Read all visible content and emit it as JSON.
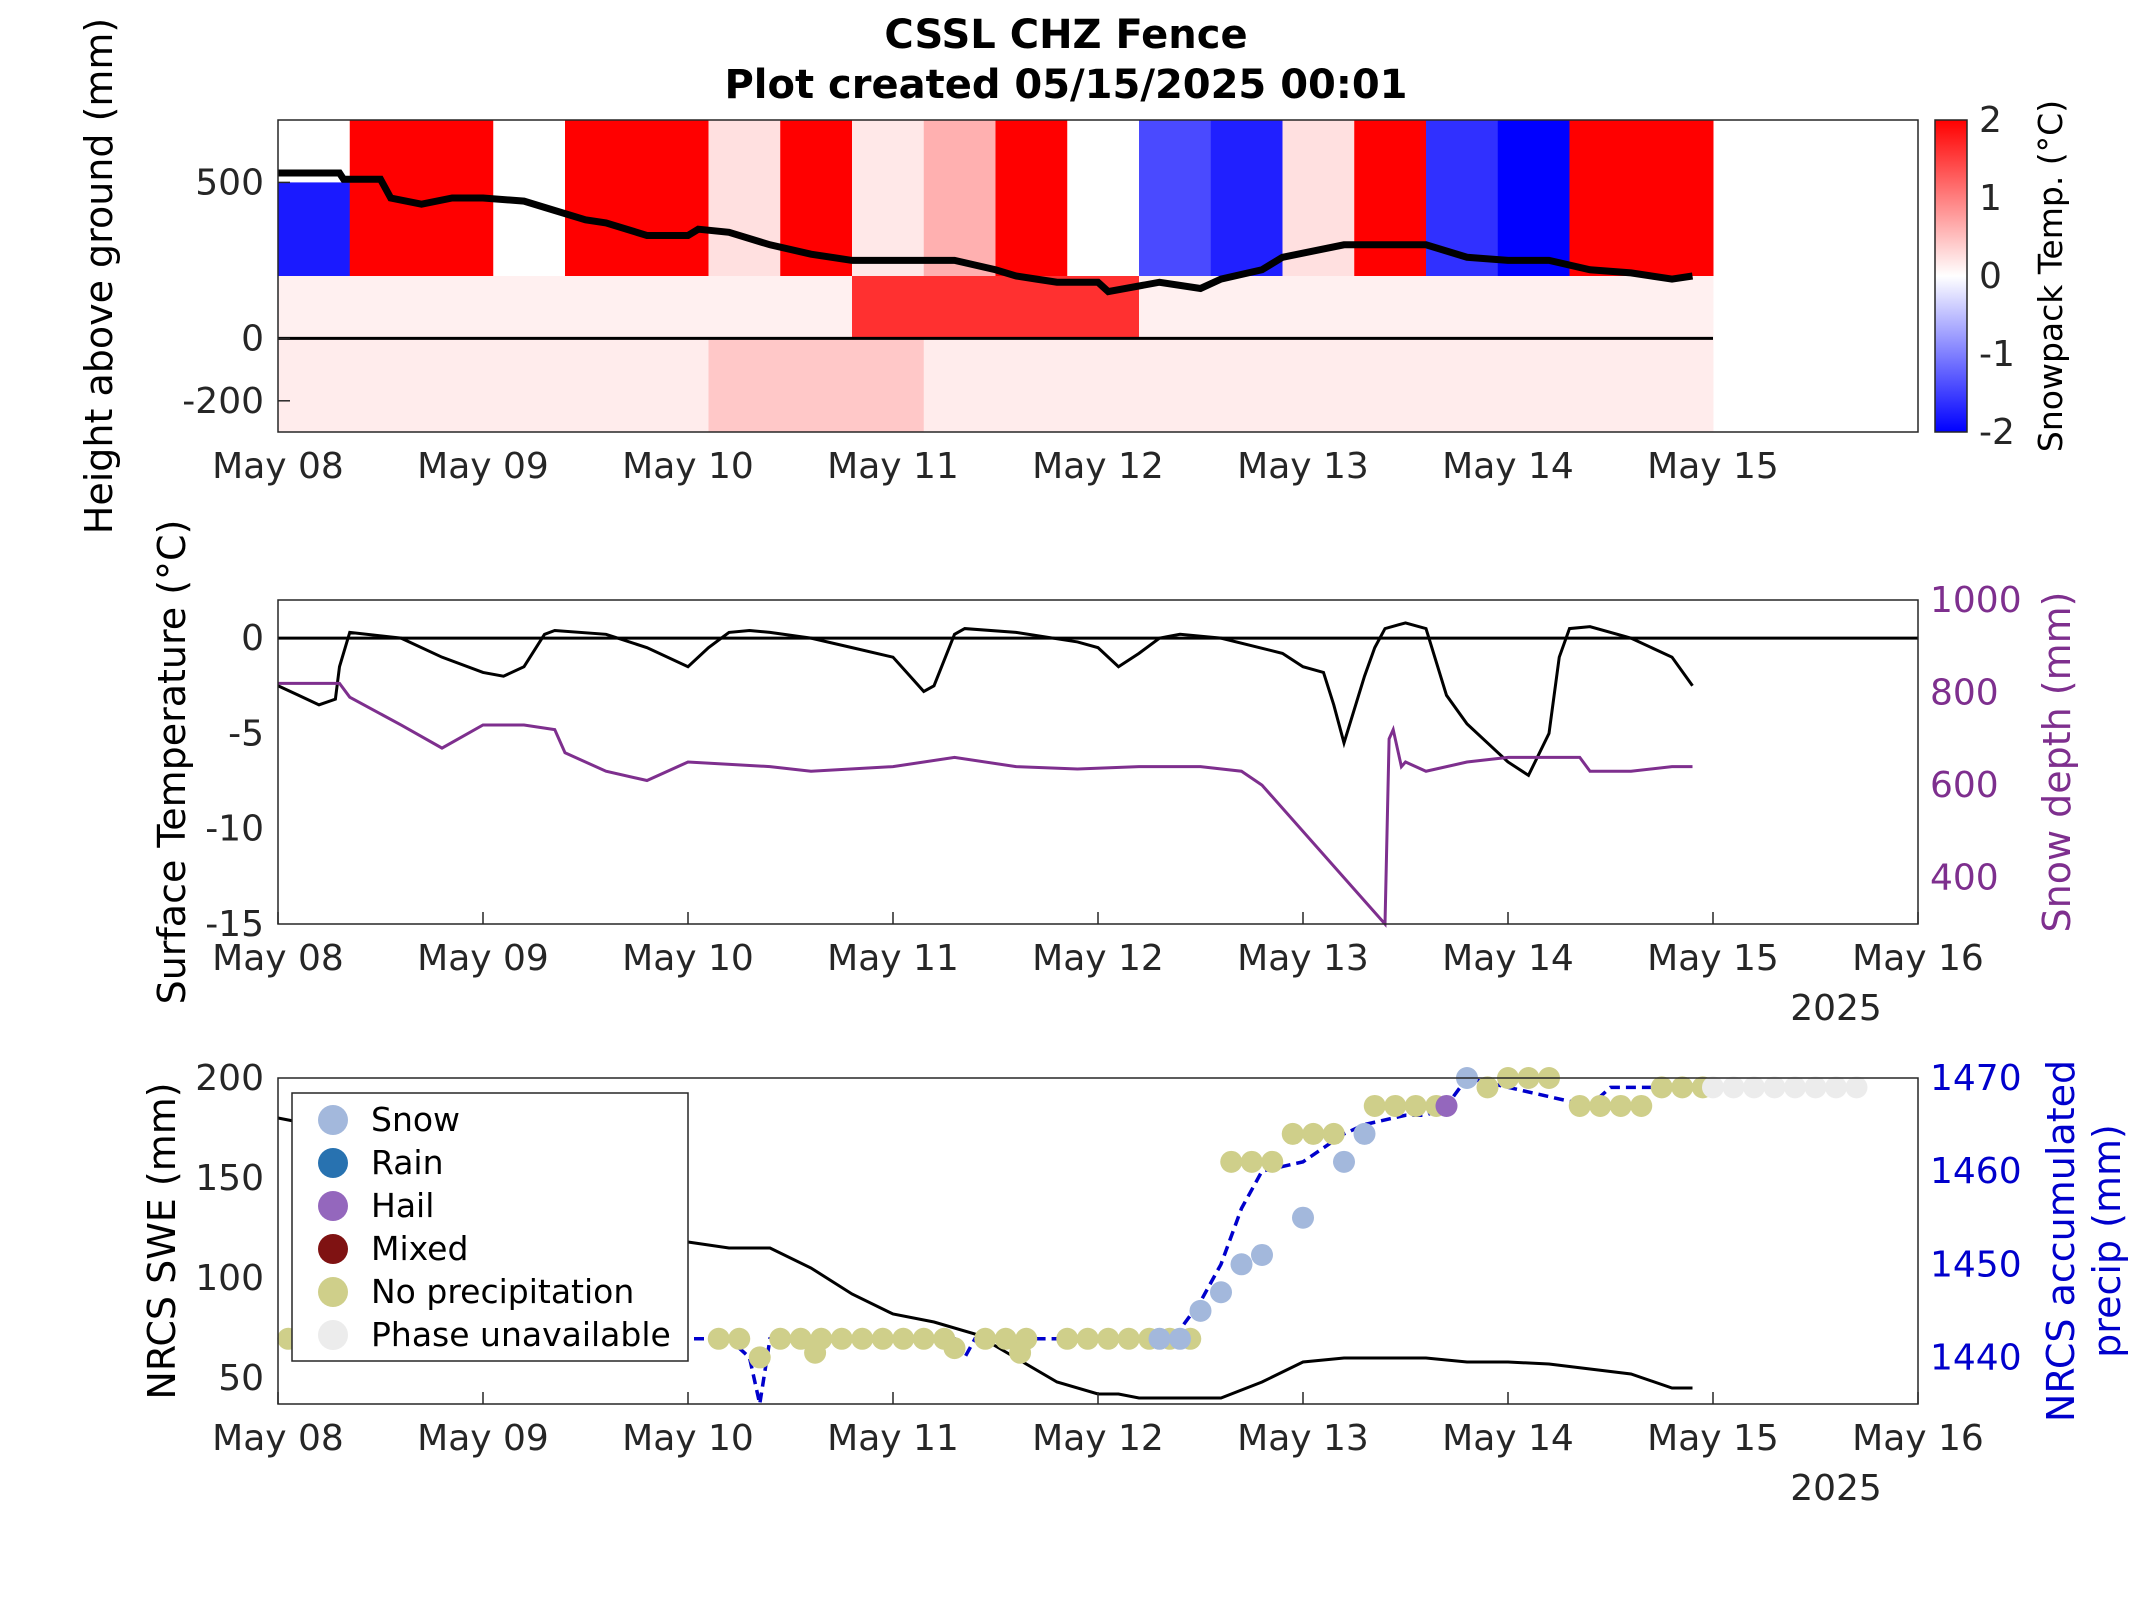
{
  "title_lines": [
    "CSSL CHZ Fence",
    "Plot created 05/15/2025 00:01"
  ],
  "chart_data": [
    {
      "type": "heatmap",
      "ylabel": "Height above ground (mm)",
      "yticks": [
        500,
        0,
        -200
      ],
      "ylim": [
        -300,
        700
      ],
      "xlim": [
        "May 08",
        "May 16"
      ],
      "xticks": [
        "May 08",
        "May 09",
        "May 10",
        "May 11",
        "May 12",
        "May 13",
        "May 14",
        "May 15"
      ],
      "colorbar": {
        "label": "Snowpack Temp. (°C)",
        "ticks": [
          2,
          1,
          0,
          -1,
          -2
        ],
        "range": [
          -2,
          2
        ],
        "colors": [
          "#0000ff",
          "#ffffff",
          "#ff0000"
        ]
      },
      "snow_depth_line": {
        "x": [
          0,
          0.3,
          0.32,
          0.5,
          0.55,
          0.7,
          0.85,
          1.0,
          1.2,
          1.3,
          1.5,
          1.6,
          1.8,
          2.0,
          2.05,
          2.2,
          2.4,
          2.6,
          2.8,
          3.0,
          3.3,
          3.5,
          3.6,
          3.7,
          3.8,
          4.0,
          4.05,
          4.3,
          4.5,
          4.6,
          4.8,
          4.9,
          5.2,
          5.4,
          5.6,
          5.8,
          6.0,
          6.2,
          6.4,
          6.6,
          6.8,
          6.9
        ],
        "y": [
          530,
          530,
          510,
          510,
          450,
          430,
          450,
          450,
          440,
          420,
          380,
          370,
          330,
          330,
          350,
          340,
          300,
          270,
          250,
          250,
          250,
          220,
          200,
          190,
          180,
          180,
          150,
          180,
          160,
          190,
          220,
          260,
          300,
          300,
          300,
          260,
          250,
          250,
          220,
          210,
          190,
          200
        ]
      },
      "zero_line": 0
    },
    {
      "type": "line",
      "ylabel": "Surface Temperature (°C)",
      "y2label": "Snow depth (mm)",
      "ylim": [
        -15,
        2
      ],
      "y2lim": [
        300,
        1000
      ],
      "yticks": [
        0,
        -5,
        -10,
        -15
      ],
      "y2ticks": [
        1000,
        800,
        600,
        400
      ],
      "xlim": [
        "May 08",
        "May 16"
      ],
      "xticks": [
        "May 08",
        "May 09",
        "May 10",
        "May 11",
        "May 12",
        "May 13",
        "May 14",
        "May 15",
        "May 16"
      ],
      "year_label": "2025",
      "series": [
        {
          "axis": "left",
          "color": "#000000",
          "x": [
            0,
            0.1,
            0.2,
            0.28,
            0.3,
            0.35,
            0.6,
            0.8,
            1.0,
            1.1,
            1.2,
            1.3,
            1.35,
            1.6,
            1.8,
            2.0,
            2.1,
            2.2,
            2.3,
            2.4,
            2.6,
            2.8,
            3.0,
            3.1,
            3.15,
            3.2,
            3.3,
            3.35,
            3.6,
            3.9,
            4.0,
            4.1,
            4.2,
            4.3,
            4.4,
            4.6,
            4.9,
            5.0,
            5.1,
            5.15,
            5.2,
            5.3,
            5.35,
            5.4,
            5.5,
            5.6,
            5.7,
            5.8,
            5.9,
            6.0,
            6.1,
            6.2,
            6.25,
            6.3,
            6.4,
            6.6,
            6.8,
            6.9
          ],
          "y": [
            -2.5,
            -3.0,
            -3.5,
            -3.2,
            -1.5,
            0.3,
            0.0,
            -1.0,
            -1.8,
            -2.0,
            -1.5,
            0.2,
            0.4,
            0.2,
            -0.5,
            -1.5,
            -0.5,
            0.3,
            0.4,
            0.3,
            0.0,
            -0.5,
            -1.0,
            -2.2,
            -2.8,
            -2.5,
            0.2,
            0.5,
            0.3,
            -0.2,
            -0.5,
            -1.5,
            -0.8,
            0.0,
            0.2,
            0.0,
            -0.8,
            -1.5,
            -1.8,
            -3.5,
            -5.5,
            -2.0,
            -0.5,
            0.5,
            0.8,
            0.5,
            -3.0,
            -4.5,
            -5.5,
            -6.5,
            -7.2,
            -5.0,
            -1.0,
            0.5,
            0.6,
            0.0,
            -1.0,
            -2.5
          ]
        },
        {
          "axis": "right",
          "color": "#7e2f8e",
          "x": [
            0,
            0.3,
            0.35,
            0.6,
            0.8,
            1.0,
            1.2,
            1.35,
            1.4,
            1.6,
            1.8,
            2.0,
            2.4,
            2.6,
            3.0,
            3.3,
            3.6,
            3.9,
            4.2,
            4.5,
            4.7,
            4.8,
            5.4,
            5.42,
            5.44,
            5.48,
            5.5,
            5.6,
            5.8,
            6.0,
            6.2,
            6.35,
            6.4,
            6.6,
            6.8,
            6.9
          ],
          "y": [
            820,
            820,
            790,
            730,
            680,
            730,
            730,
            720,
            670,
            630,
            610,
            650,
            640,
            630,
            640,
            660,
            640,
            635,
            640,
            640,
            630,
            600,
            300,
            700,
            720,
            640,
            650,
            630,
            650,
            660,
            660,
            660,
            630,
            630,
            640,
            640
          ]
        }
      ],
      "zero_line": 0
    },
    {
      "type": "scatter",
      "ylabel": "NRCS SWE (mm)",
      "y2label": "NRCS accumulated precip (mm)",
      "ylim": [
        37,
        200
      ],
      "y2lim": [
        1435,
        1470
      ],
      "yticks": [
        200,
        150,
        100,
        50
      ],
      "y2ticks": [
        1470,
        1460,
        1450,
        1440
      ],
      "xlim": [
        "May 08",
        "May 16"
      ],
      "xticks": [
        "May 08",
        "May 09",
        "May 10",
        "May 11",
        "May 12",
        "May 13",
        "May 14",
        "May 15",
        "May 16"
      ],
      "year_label": "2025",
      "legend": [
        {
          "label": "Snow",
          "color": "#a3b8dc"
        },
        {
          "label": "Rain",
          "color": "#2872b0"
        },
        {
          "label": "Hail",
          "color": "#9467bd"
        },
        {
          "label": "Mixed",
          "color": "#7f1212"
        },
        {
          "label": "No precipitation",
          "color": "#cfcf8a"
        },
        {
          "label": "Phase unavailable",
          "color": "#ececec"
        }
      ],
      "swe_line": {
        "color": "#000000",
        "x": [
          0,
          0.1,
          1.8,
          2.0,
          2.2,
          2.4,
          2.6,
          2.8,
          3.0,
          3.2,
          3.4,
          3.6,
          3.8,
          4.0,
          4.1,
          4.2,
          4.6,
          4.8,
          5.0,
          5.2,
          5.6,
          5.8,
          6.0,
          6.2,
          6.6,
          6.8,
          6.9
        ],
        "y": [
          180,
          178,
          120,
          118,
          115,
          115,
          105,
          92,
          82,
          78,
          72,
          60,
          48,
          42,
          42,
          40,
          40,
          48,
          58,
          60,
          60,
          58,
          58,
          57,
          52,
          45,
          45
        ]
      },
      "precip_line": {
        "color": "#0000cc",
        "x": [
          0,
          2.2,
          2.3,
          2.35,
          2.4,
          2.6,
          3.3,
          3.35,
          3.4,
          4.2,
          4.3,
          4.4,
          4.5,
          4.6,
          4.7,
          4.8,
          5.0,
          5.2,
          5.3,
          5.5,
          5.6,
          5.7,
          5.8,
          6.0,
          6.4,
          6.5,
          6.9
        ],
        "y": [
          1442,
          1442,
          1440,
          1435,
          1442,
          1442,
          1442,
          1440,
          1442,
          1442,
          1441,
          1443,
          1446,
          1450,
          1456,
          1460,
          1461,
          1464,
          1465,
          1466,
          1466,
          1467,
          1470,
          1469,
          1467,
          1469,
          1469
        ]
      },
      "points": [
        {
          "phase": "No precipitation",
          "x": [
            0.05,
            2.15,
            2.25,
            2.45,
            2.55,
            2.65,
            2.75,
            2.85,
            2.95,
            3.05,
            3.15,
            3.25,
            3.45,
            3.55,
            3.65,
            3.85,
            3.95,
            4.05,
            4.15,
            4.25,
            4.35,
            4.45,
            4.65,
            4.75,
            4.85,
            4.95,
            5.05,
            5.15,
            5.35,
            5.45,
            5.55,
            5.65,
            5.9,
            6.0,
            6.1,
            6.2,
            6.35,
            6.45,
            6.55,
            6.65,
            6.75,
            6.85,
            6.95
          ],
          "y": [
            1442,
            1442,
            1442,
            1442,
            1442,
            1442,
            1442,
            1442,
            1442,
            1442,
            1442,
            1442,
            1442,
            1442,
            1442,
            1442,
            1442,
            1442,
            1442,
            1442,
            1442,
            1442,
            1461,
            1461,
            1461,
            1464,
            1464,
            1464,
            1467,
            1467,
            1467,
            1467,
            1469,
            1470,
            1470,
            1470,
            1467,
            1467,
            1467,
            1467,
            1469,
            1469,
            1469
          ]
        },
        {
          "phase": "No precipitation",
          "x": [
            2.35,
            2.62,
            3.3,
            3.62
          ],
          "y": [
            1440,
            1440.5,
            1441,
            1440.5
          ]
        },
        {
          "phase": "Snow",
          "x": [
            4.3,
            4.4,
            4.5,
            4.6,
            4.7,
            4.8,
            5.0,
            5.2,
            5.3,
            5.8
          ],
          "y": [
            1442,
            1442,
            1445,
            1447,
            1450,
            1451,
            1455,
            1461,
            1464,
            1470
          ]
        },
        {
          "phase": "Hail",
          "x": [
            5.7
          ],
          "y": [
            1467
          ]
        },
        {
          "phase": "Phase unavailable",
          "x": [
            7.0,
            7.1,
            7.2,
            7.3,
            7.4,
            7.5,
            7.6,
            7.7
          ],
          "y": [
            1469,
            1469,
            1469,
            1469,
            1469,
            1469,
            1469,
            1469
          ]
        }
      ]
    }
  ]
}
